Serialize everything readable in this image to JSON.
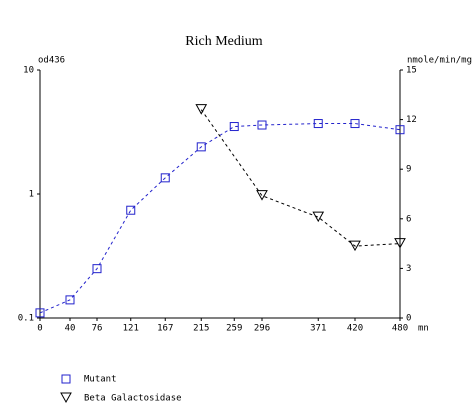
{
  "chart_data": {
    "type": "line",
    "title": "Rich Medium",
    "y_label": "od436",
    "y2_label": "nmole/min/mg",
    "x_label": "mn",
    "xlim": [
      0,
      480
    ],
    "xticks": [
      0,
      40,
      76,
      121,
      167,
      215,
      259,
      296,
      371,
      420,
      480
    ],
    "ylim": [
      0.1,
      10
    ],
    "yticks": [
      0.1,
      1,
      10
    ],
    "ylog": true,
    "y2lim": [
      0,
      15
    ],
    "y2ticks": [
      0,
      3,
      6,
      9,
      12,
      15
    ],
    "series": [
      {
        "name": "Mutant",
        "color": "#2222cc",
        "marker": "square",
        "x": [
          0,
          40,
          76,
          121,
          167,
          215,
          259,
          296,
          371,
          420,
          480
        ],
        "values": [
          0.11,
          0.14,
          0.25,
          0.74,
          1.35,
          2.4,
          3.5,
          3.6,
          3.7,
          3.7,
          3.3
        ]
      },
      {
        "name": "Beta Galactosidase",
        "color": "#000000",
        "marker": "triangle",
        "axis": "y2",
        "x": [
          215,
          296,
          371,
          420,
          480
        ],
        "values": [
          12.6,
          7.4,
          6.1,
          4.35,
          4.5
        ]
      }
    ]
  }
}
